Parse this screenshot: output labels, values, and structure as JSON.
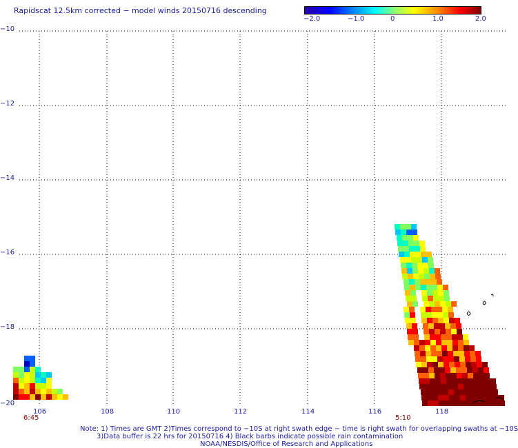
{
  "title": "Rapidscat 12.5km corrected − model winds 20150716 descending",
  "colorbar": {
    "labels": [
      "−2.0",
      "−1.0",
      "0",
      "1.0",
      "2.0"
    ]
  },
  "lat_labels": [
    "−10",
    "−12",
    "−14",
    "−16",
    "−18",
    "−20"
  ],
  "lon_labels": [
    "106",
    "108",
    "110",
    "112",
    "114",
    "116",
    "118"
  ],
  "swath_times": [
    "6:45",
    "5:10"
  ],
  "notes": [
    "Note: 1) Times are GMT 2)Times correspond to −10S at right swath edge − time is right swath for overlapping swaths at −10S",
    "3)Data buffer is 22 hrs for 20150716 4) Black barbs indicate possible rain contamination",
    "NOAA/NESDIS/Office of Research and Applications"
  ],
  "colors": {
    "label": "#1a1aa0",
    "time": "#8b0000"
  }
}
